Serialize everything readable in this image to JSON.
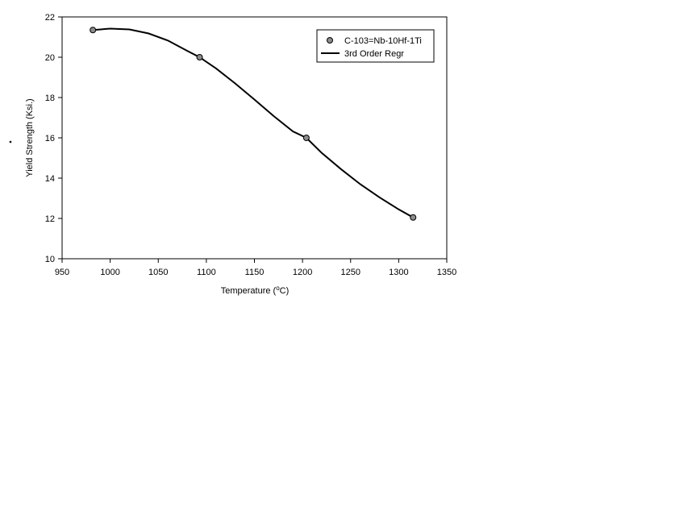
{
  "chart_data": {
    "type": "scatter",
    "title": "",
    "xlabel_main": "Temperature (",
    "xlabel_sup": "o",
    "xlabel_end": "C)",
    "ylabel": "Yield Strength (Ksi.)",
    "xlim": [
      950,
      1350
    ],
    "ylim": [
      10,
      22
    ],
    "xticks": [
      950,
      1000,
      1050,
      1100,
      1150,
      1200,
      1250,
      1300,
      1350
    ],
    "yticks": [
      10,
      12,
      14,
      16,
      18,
      20,
      22
    ],
    "grid": false,
    "legend_position": "top-right",
    "series": [
      {
        "name": "C-103=Nb-10Hf-1Ti",
        "kind": "points",
        "x": [
          982,
          1093,
          1204,
          1315
        ],
        "y": [
          21.35,
          20.0,
          16.0,
          12.05
        ]
      },
      {
        "name": "3rd Order Regr",
        "kind": "line",
        "x": [
          982,
          1000,
          1020,
          1040,
          1060,
          1080,
          1093,
          1110,
          1130,
          1150,
          1170,
          1190,
          1204,
          1220,
          1240,
          1260,
          1280,
          1300,
          1315
        ],
        "y": [
          21.35,
          21.42,
          21.38,
          21.18,
          20.83,
          20.32,
          20.0,
          19.45,
          18.7,
          17.9,
          17.08,
          16.32,
          16.0,
          15.25,
          14.45,
          13.7,
          13.05,
          12.45,
          12.05
        ]
      }
    ],
    "colors": {
      "marker_fill": "#8c8c8c",
      "marker_stroke": "#000000",
      "line": "#000000"
    }
  }
}
